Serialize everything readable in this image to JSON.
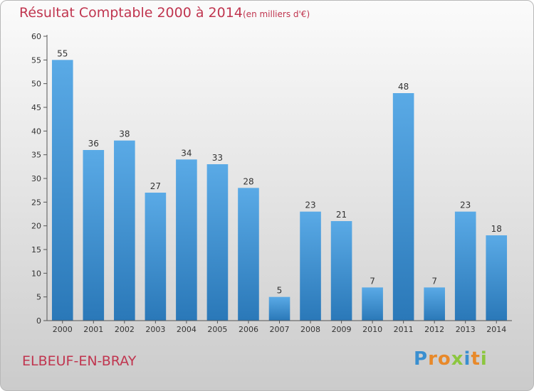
{
  "chart_data": {
    "type": "bar",
    "title": "Résultat Comptable 2000 à 2014",
    "subtitle": "(en milliers d'€)",
    "categories": [
      "2000",
      "2001",
      "2002",
      "2003",
      "2004",
      "2005",
      "2006",
      "2007",
      "2008",
      "2009",
      "2010",
      "2011",
      "2012",
      "2013",
      "2014"
    ],
    "values": [
      55,
      36,
      38,
      27,
      34,
      33,
      28,
      5,
      23,
      21,
      7,
      48,
      7,
      23,
      18
    ],
    "yticks": [
      0,
      5,
      10,
      15,
      20,
      25,
      30,
      35,
      40,
      45,
      50,
      55,
      60
    ],
    "ylim": [
      0,
      60
    ],
    "xlabel": "",
    "ylabel": "",
    "grid": false,
    "colors": {
      "bar_light": "#5aaae6",
      "bar_dark": "#2a78b8",
      "accent": "#c0354f"
    }
  },
  "footer": {
    "commune": "ELBEUF-EN-BRAY",
    "logo_letters": [
      "P",
      "r",
      "o",
      "x",
      "i",
      "t",
      "i"
    ],
    "logo_colors": [
      "#3a8fd0",
      "#e8892a",
      "#e8892a",
      "#8cc63f",
      "#3a8fd0",
      "#e8892a",
      "#8cc63f"
    ]
  }
}
